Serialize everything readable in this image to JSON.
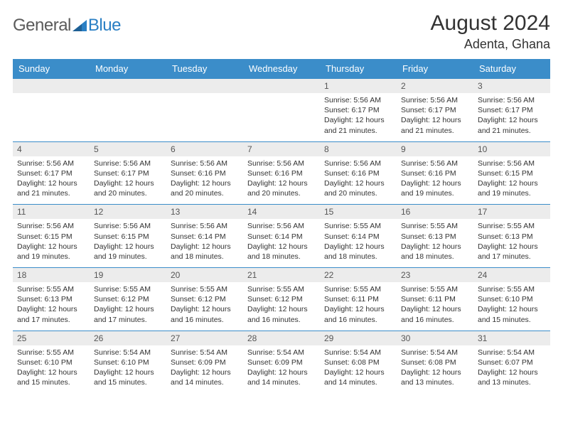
{
  "logo": {
    "word1": "General",
    "word2": "Blue"
  },
  "title": "August 2024",
  "location": "Adenta, Ghana",
  "colors": {
    "header_bg": "#3b8dc9",
    "header_text": "#ffffff",
    "daynum_bg": "#ececec",
    "row_border": "#3b8dc9",
    "logo_gray": "#5a5a5a",
    "logo_blue": "#2a7fc4"
  },
  "day_headers": [
    "Sunday",
    "Monday",
    "Tuesday",
    "Wednesday",
    "Thursday",
    "Friday",
    "Saturday"
  ],
  "weeks": [
    [
      {
        "n": "",
        "sr": "",
        "ss": "",
        "dl": ""
      },
      {
        "n": "",
        "sr": "",
        "ss": "",
        "dl": ""
      },
      {
        "n": "",
        "sr": "",
        "ss": "",
        "dl": ""
      },
      {
        "n": "",
        "sr": "",
        "ss": "",
        "dl": ""
      },
      {
        "n": "1",
        "sr": "Sunrise: 5:56 AM",
        "ss": "Sunset: 6:17 PM",
        "dl": "Daylight: 12 hours and 21 minutes."
      },
      {
        "n": "2",
        "sr": "Sunrise: 5:56 AM",
        "ss": "Sunset: 6:17 PM",
        "dl": "Daylight: 12 hours and 21 minutes."
      },
      {
        "n": "3",
        "sr": "Sunrise: 5:56 AM",
        "ss": "Sunset: 6:17 PM",
        "dl": "Daylight: 12 hours and 21 minutes."
      }
    ],
    [
      {
        "n": "4",
        "sr": "Sunrise: 5:56 AM",
        "ss": "Sunset: 6:17 PM",
        "dl": "Daylight: 12 hours and 21 minutes."
      },
      {
        "n": "5",
        "sr": "Sunrise: 5:56 AM",
        "ss": "Sunset: 6:17 PM",
        "dl": "Daylight: 12 hours and 20 minutes."
      },
      {
        "n": "6",
        "sr": "Sunrise: 5:56 AM",
        "ss": "Sunset: 6:16 PM",
        "dl": "Daylight: 12 hours and 20 minutes."
      },
      {
        "n": "7",
        "sr": "Sunrise: 5:56 AM",
        "ss": "Sunset: 6:16 PM",
        "dl": "Daylight: 12 hours and 20 minutes."
      },
      {
        "n": "8",
        "sr": "Sunrise: 5:56 AM",
        "ss": "Sunset: 6:16 PM",
        "dl": "Daylight: 12 hours and 20 minutes."
      },
      {
        "n": "9",
        "sr": "Sunrise: 5:56 AM",
        "ss": "Sunset: 6:16 PM",
        "dl": "Daylight: 12 hours and 19 minutes."
      },
      {
        "n": "10",
        "sr": "Sunrise: 5:56 AM",
        "ss": "Sunset: 6:15 PM",
        "dl": "Daylight: 12 hours and 19 minutes."
      }
    ],
    [
      {
        "n": "11",
        "sr": "Sunrise: 5:56 AM",
        "ss": "Sunset: 6:15 PM",
        "dl": "Daylight: 12 hours and 19 minutes."
      },
      {
        "n": "12",
        "sr": "Sunrise: 5:56 AM",
        "ss": "Sunset: 6:15 PM",
        "dl": "Daylight: 12 hours and 19 minutes."
      },
      {
        "n": "13",
        "sr": "Sunrise: 5:56 AM",
        "ss": "Sunset: 6:14 PM",
        "dl": "Daylight: 12 hours and 18 minutes."
      },
      {
        "n": "14",
        "sr": "Sunrise: 5:56 AM",
        "ss": "Sunset: 6:14 PM",
        "dl": "Daylight: 12 hours and 18 minutes."
      },
      {
        "n": "15",
        "sr": "Sunrise: 5:55 AM",
        "ss": "Sunset: 6:14 PM",
        "dl": "Daylight: 12 hours and 18 minutes."
      },
      {
        "n": "16",
        "sr": "Sunrise: 5:55 AM",
        "ss": "Sunset: 6:13 PM",
        "dl": "Daylight: 12 hours and 18 minutes."
      },
      {
        "n": "17",
        "sr": "Sunrise: 5:55 AM",
        "ss": "Sunset: 6:13 PM",
        "dl": "Daylight: 12 hours and 17 minutes."
      }
    ],
    [
      {
        "n": "18",
        "sr": "Sunrise: 5:55 AM",
        "ss": "Sunset: 6:13 PM",
        "dl": "Daylight: 12 hours and 17 minutes."
      },
      {
        "n": "19",
        "sr": "Sunrise: 5:55 AM",
        "ss": "Sunset: 6:12 PM",
        "dl": "Daylight: 12 hours and 17 minutes."
      },
      {
        "n": "20",
        "sr": "Sunrise: 5:55 AM",
        "ss": "Sunset: 6:12 PM",
        "dl": "Daylight: 12 hours and 16 minutes."
      },
      {
        "n": "21",
        "sr": "Sunrise: 5:55 AM",
        "ss": "Sunset: 6:12 PM",
        "dl": "Daylight: 12 hours and 16 minutes."
      },
      {
        "n": "22",
        "sr": "Sunrise: 5:55 AM",
        "ss": "Sunset: 6:11 PM",
        "dl": "Daylight: 12 hours and 16 minutes."
      },
      {
        "n": "23",
        "sr": "Sunrise: 5:55 AM",
        "ss": "Sunset: 6:11 PM",
        "dl": "Daylight: 12 hours and 16 minutes."
      },
      {
        "n": "24",
        "sr": "Sunrise: 5:55 AM",
        "ss": "Sunset: 6:10 PM",
        "dl": "Daylight: 12 hours and 15 minutes."
      }
    ],
    [
      {
        "n": "25",
        "sr": "Sunrise: 5:55 AM",
        "ss": "Sunset: 6:10 PM",
        "dl": "Daylight: 12 hours and 15 minutes."
      },
      {
        "n": "26",
        "sr": "Sunrise: 5:54 AM",
        "ss": "Sunset: 6:10 PM",
        "dl": "Daylight: 12 hours and 15 minutes."
      },
      {
        "n": "27",
        "sr": "Sunrise: 5:54 AM",
        "ss": "Sunset: 6:09 PM",
        "dl": "Daylight: 12 hours and 14 minutes."
      },
      {
        "n": "28",
        "sr": "Sunrise: 5:54 AM",
        "ss": "Sunset: 6:09 PM",
        "dl": "Daylight: 12 hours and 14 minutes."
      },
      {
        "n": "29",
        "sr": "Sunrise: 5:54 AM",
        "ss": "Sunset: 6:08 PM",
        "dl": "Daylight: 12 hours and 14 minutes."
      },
      {
        "n": "30",
        "sr": "Sunrise: 5:54 AM",
        "ss": "Sunset: 6:08 PM",
        "dl": "Daylight: 12 hours and 13 minutes."
      },
      {
        "n": "31",
        "sr": "Sunrise: 5:54 AM",
        "ss": "Sunset: 6:07 PM",
        "dl": "Daylight: 12 hours and 13 minutes."
      }
    ]
  ]
}
